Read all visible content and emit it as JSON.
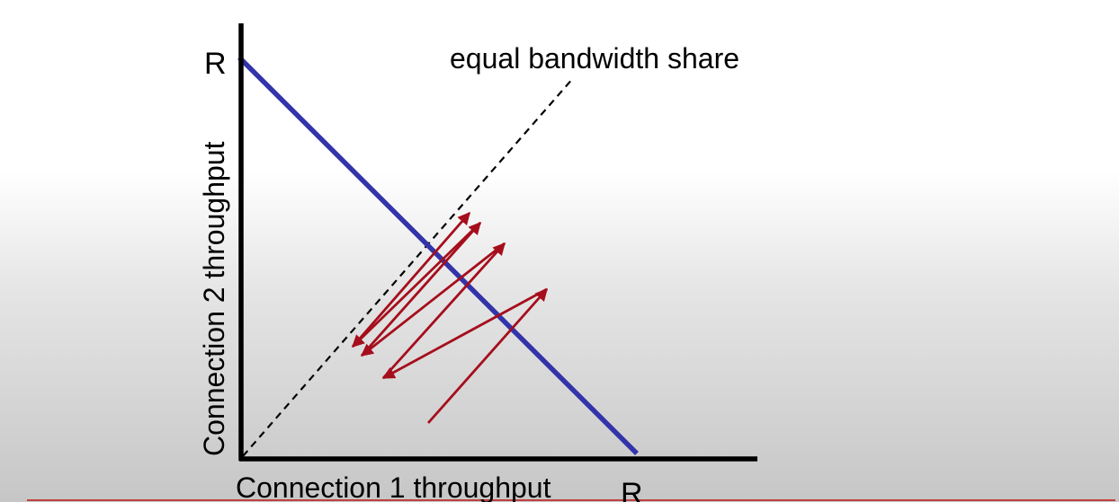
{
  "diagram": {
    "y_axis_label": "Connection 2 throughput",
    "x_axis_label": "Connection 1 throughput",
    "y_max_label": "R",
    "x_max_label": "R",
    "diagonal_label": "equal bandwidth share"
  },
  "colors": {
    "axis": "#000000",
    "capacity_line": "#3333aa",
    "trajectory": "#a50e1c",
    "diagonal": "#000000"
  }
}
